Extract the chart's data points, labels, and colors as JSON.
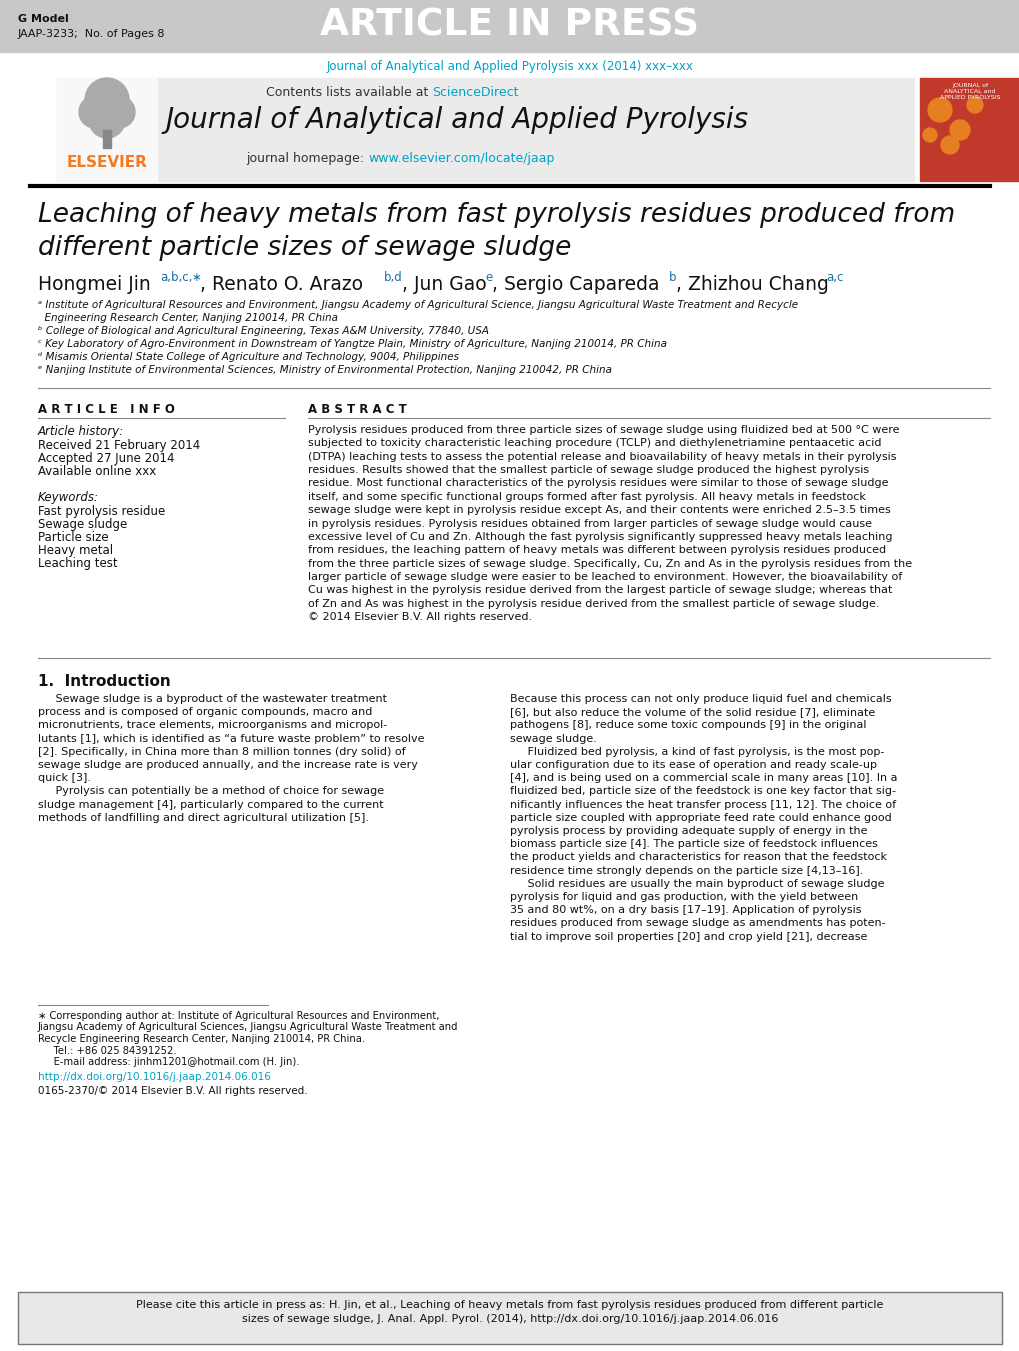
{
  "article_in_press_bg": "#b0b0b0",
  "article_in_press_text": "ARTICLE IN PRESS",
  "g_model": "G Model",
  "jaap_ref": "JAAP-3233;  No. of Pages 8",
  "journal_link": "Journal of Analytical and Applied Pyrolysis xxx (2014) xxx–xxx",
  "journal_link_color": "#00a0c6",
  "contents_text": "Contents lists available at ",
  "science_direct": "ScienceDirect",
  "science_direct_color": "#00a0c6",
  "journal_title": "Journal of Analytical and Applied Pyrolysis",
  "homepage_text": "journal homepage: ",
  "homepage_url": "www.elsevier.com/locate/jaap",
  "homepage_url_color": "#00a0c6",
  "elsevier_color": "#f47920",
  "paper_title": "Leaching of heavy metals from fast pyrolysis residues produced from\ndifferent particle sizes of sewage sludge",
  "article_info_header": "A R T I C L E   I N F O",
  "abstract_header": "A B S T R A C T",
  "article_history": "Article history:",
  "received": "Received 21 February 2014",
  "accepted": "Accepted 27 June 2014",
  "available": "Available online xxx",
  "keywords_header": "Keywords:",
  "keywords": [
    "Fast pyrolysis residue",
    "Sewage sludge",
    "Particle size",
    "Heavy metal",
    "Leaching test"
  ],
  "abstract_text": "Pyrolysis residues produced from three particle sizes of sewage sludge using fluidized bed at 500 °C were\nsubjected to toxicity characteristic leaching procedure (TCLP) and diethylenetriamine pentaacetic acid\n(DTPA) leaching tests to assess the potential release and bioavailability of heavy metals in their pyrolysis\nresidues. Results showed that the smallest particle of sewage sludge produced the highest pyrolysis\nresidue. Most functional characteristics of the pyrolysis residues were similar to those of sewage sludge\nitself, and some specific functional groups formed after fast pyrolysis. All heavy metals in feedstock\nsewage sludge were kept in pyrolysis residue except As, and their contents were enriched 2.5–3.5 times\nin pyrolysis residues. Pyrolysis residues obtained from larger particles of sewage sludge would cause\nexcessive level of Cu and Zn. Although the fast pyrolysis significantly suppressed heavy metals leaching\nfrom residues, the leaching pattern of heavy metals was different between pyrolysis residues produced\nfrom the three particle sizes of sewage sludge. Specifically, Cu, Zn and As in the pyrolysis residues from the\nlarger particle of sewage sludge were easier to be leached to environment. However, the bioavailability of\nCu was highest in the pyrolysis residue derived from the largest particle of sewage sludge; whereas that\nof Zn and As was highest in the pyrolysis residue derived from the smallest particle of sewage sludge.\n© 2014 Elsevier B.V. All rights reserved.",
  "intro_header": "1.  Introduction",
  "intro_col1_lines": [
    "     Sewage sludge is a byproduct of the wastewater treatment",
    "process and is composed of organic compounds, macro and",
    "micronutrients, trace elements, microorganisms and micropol-",
    "lutants [1], which is identified as “a future waste problem” to resolve",
    "[2]. Specifically, in China more than 8 million tonnes (dry solid) of",
    "sewage sludge are produced annually, and the increase rate is very",
    "quick [3].",
    "     Pyrolysis can potentially be a method of choice for sewage",
    "sludge management [4], particularly compared to the current",
    "methods of landfilling and direct agricultural utilization [5]."
  ],
  "intro_col2_lines": [
    "Because this process can not only produce liquid fuel and chemicals",
    "[6], but also reduce the volume of the solid residue [7], eliminate",
    "pathogens [8], reduce some toxic compounds [9] in the original",
    "sewage sludge.",
    "     Fluidized bed pyrolysis, a kind of fast pyrolysis, is the most pop-",
    "ular configuration due to its ease of operation and ready scale-up",
    "[4], and is being used on a commercial scale in many areas [10]. In a",
    "fluidized bed, particle size of the feedstock is one key factor that sig-",
    "nificantly influences the heat transfer process [11, 12]. The choice of",
    "particle size coupled with appropriate feed rate could enhance good",
    "pyrolysis process by providing adequate supply of energy in the",
    "biomass particle size [4]. The particle size of feedstock influences",
    "the product yields and characteristics for reason that the feedstock",
    "residence time strongly depends on the particle size [4,13–16].",
    "     Solid residues are usually the main byproduct of sewage sludge",
    "pyrolysis for liquid and gas production, with the yield between",
    "35 and 80 wt%, on a dry basis [17–19]. Application of pyrolysis",
    "residues produced from sewage sludge as amendments has poten-",
    "tial to improve soil properties [20] and crop yield [21], decrease"
  ],
  "footnote_lines": [
    "∗ Corresponding author at: Institute of Agricultural Resources and Environment,",
    "Jiangsu Academy of Agricultural Sciences, Jiangsu Agricultural Waste Treatment and",
    "Recycle Engineering Research Center, Nanjing 210014, PR China.",
    "     Tel.: +86 025 84391252.",
    "     E-mail address: jinhm1201@hotmail.com (H. Jin)."
  ],
  "doi_text": "http://dx.doi.org/10.1016/j.jaap.2014.06.016",
  "doi_color": "#00a0c6",
  "copyright": "0165-2370/© 2014 Elsevier B.V. All rights reserved.",
  "cite_line1": "Please cite this article in press as: H. Jin, et al., Leaching of heavy metals from fast pyrolysis residues produced from different particle",
  "cite_line2_plain": "sizes of sewage sludge, J. Anal. Appl. Pyrol. (2014), ",
  "cite_line2_url": "http://dx.doi.org/10.1016/j.jaap.2014.06.016",
  "cite_url_color": "#00a0c6",
  "bg_color": "#ffffff",
  "text_color": "#000000",
  "header_gray": "#c8c8c8",
  "affil_a": "ᵃ Institute of Agricultural Resources and Environment, Jiangsu Academy of Agricultural Science, Jiangsu Agricultural Waste Treatment and Recycle",
  "affil_a2": "  Engineering Research Center, Nanjing 210014, PR China",
  "affil_b": "ᵇ College of Biological and Agricultural Engineering, Texas A&M University, 77840, USA",
  "affil_c": "ᶜ Key Laboratory of Agro-Environment in Downstream of Yangtze Plain, Ministry of Agriculture, Nanjing 210014, PR China",
  "affil_d": "ᵈ Misamis Oriental State College of Agriculture and Technology, 9004, Philippines",
  "affil_e": "ᵉ Nanjing Institute of Environmental Sciences, Ministry of Environmental Protection, Nanjing 210042, PR China"
}
